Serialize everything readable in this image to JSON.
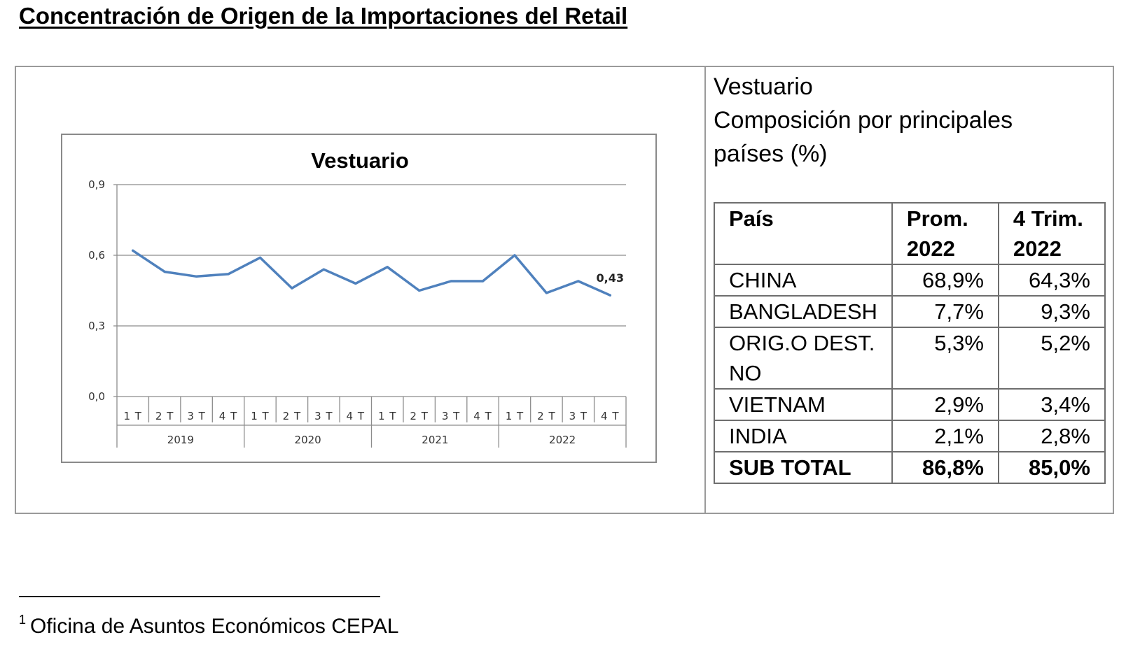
{
  "page": {
    "title": "Concentración de Origen de la Importaciones del Retail",
    "footnote_mark": "1",
    "footnote_text": "Oficina de Asuntos Económicos CEPAL"
  },
  "chart_data": {
    "type": "line",
    "title": "Vestuario",
    "xlabel": "",
    "ylabel": "",
    "ylim": [
      0,
      0.9
    ],
    "yticks": [
      "0,0",
      "0,3",
      "0,6",
      "0,9"
    ],
    "ytick_values": [
      0,
      0.3,
      0.6,
      0.9
    ],
    "grid": true,
    "legend": "none",
    "line_color": "#4f81bd",
    "categories": [
      "1 T",
      "2 T",
      "3 T",
      "4 T",
      "1 T",
      "2 T",
      "3 T",
      "4 T",
      "1 T",
      "2 T",
      "3 T",
      "4 T",
      "1 T",
      "2 T",
      "3 T",
      "4 T"
    ],
    "years": [
      "2019",
      "2020",
      "2021",
      "2022"
    ],
    "series": [
      {
        "values": [
          0.62,
          0.53,
          0.51,
          0.52,
          0.59,
          0.46,
          0.54,
          0.48,
          0.55,
          0.45,
          0.49,
          0.49,
          0.6,
          0.44,
          0.49,
          0.43
        ]
      }
    ],
    "last_point_label": "0,43"
  },
  "panel": {
    "heading_lines": [
      "Vestuario",
      "Composición por principales",
      "países (%)"
    ]
  },
  "table": {
    "headers": [
      {
        "line1": "País",
        "line2": ""
      },
      {
        "line1": "Prom.",
        "line2": "2022"
      },
      {
        "line1": "4 Trim.",
        "line2": "2022"
      }
    ],
    "rows": [
      {
        "country": "CHINA",
        "line2": "",
        "prom": "68,9%",
        "trim": "64,3%"
      },
      {
        "country": "BANGLADESH",
        "line2": "",
        "prom": "7,7%",
        "trim": "9,3%"
      },
      {
        "country": "ORIG.O DEST.",
        "line2": "NO",
        "prom": "5,3%",
        "trim": "5,2%"
      },
      {
        "country": "VIETNAM",
        "line2": "",
        "prom": "2,9%",
        "trim": "3,4%"
      },
      {
        "country": "INDIA",
        "line2": "",
        "prom": "2,1%",
        "trim": "2,8%"
      }
    ],
    "total": {
      "label": "SUB TOTAL",
      "prom": "86,8%",
      "trim": "85,0%"
    }
  }
}
